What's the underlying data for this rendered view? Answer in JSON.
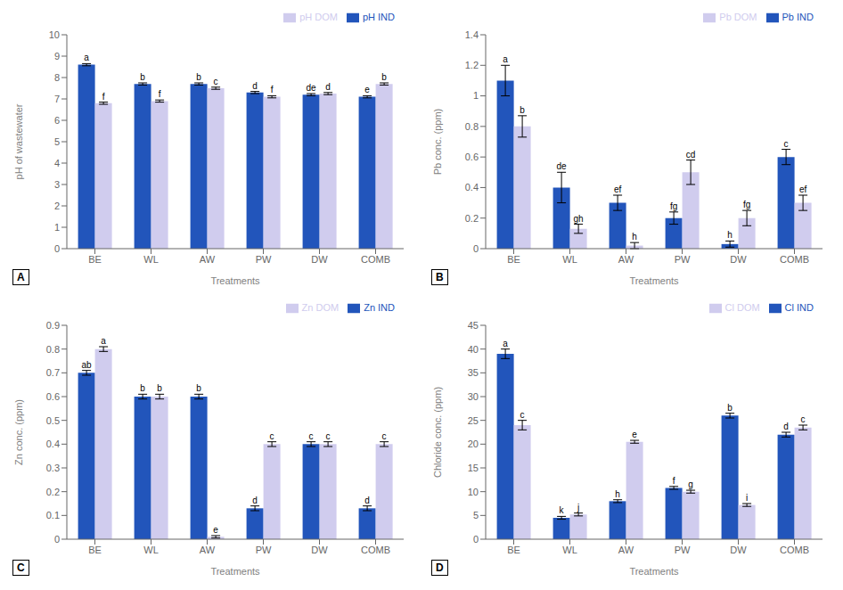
{
  "chart_data": [
    {
      "type": "bar",
      "title": "A",
      "categories": [
        "BE",
        "WL",
        "AW",
        "PW",
        "DW",
        "COMB"
      ],
      "series": [
        {
          "name": "pH IND",
          "color": "#2255bb",
          "values": [
            8.6,
            7.7,
            7.7,
            7.3,
            7.2,
            7.1
          ],
          "errors": [
            0.05,
            0.05,
            0.05,
            0.05,
            0.05,
            0.05
          ],
          "annotations": [
            "a",
            "b",
            "b",
            "d",
            "de",
            "e"
          ]
        },
        {
          "name": "pH DOM",
          "color": "#d0ccee",
          "values": [
            6.8,
            6.9,
            7.5,
            7.1,
            7.25,
            7.7
          ],
          "errors": [
            0.05,
            0.05,
            0.05,
            0.05,
            0.05,
            0.05
          ],
          "annotations": [
            "f",
            "f",
            "c",
            "f",
            "d",
            "b"
          ]
        }
      ],
      "xlabel": "Treatments",
      "ylabel": "pH of wastewater",
      "ylim": [
        0,
        10
      ],
      "yticks": [
        0,
        1,
        2,
        3,
        4,
        5,
        6,
        7,
        8,
        9,
        10
      ],
      "legend": "upper right",
      "grid": false
    },
    {
      "type": "bar",
      "title": "B",
      "categories": [
        "BE",
        "WL",
        "AW",
        "PW",
        "DW",
        "COMB"
      ],
      "series": [
        {
          "name": "Pb IND",
          "color": "#2255bb",
          "values": [
            1.1,
            0.4,
            0.3,
            0.2,
            0.03,
            0.6
          ],
          "errors": [
            0.1,
            0.1,
            0.05,
            0.04,
            0.02,
            0.05
          ],
          "annotations": [
            "a",
            "de",
            "ef",
            "fg",
            "h",
            "c"
          ]
        },
        {
          "name": "Pb DOM",
          "color": "#d0ccee",
          "values": [
            0.8,
            0.13,
            0.02,
            0.5,
            0.2,
            0.3
          ],
          "errors": [
            0.07,
            0.03,
            0.02,
            0.08,
            0.05,
            0.05
          ],
          "annotations": [
            "b",
            "gh",
            "h",
            "cd",
            "fg",
            "ef"
          ]
        }
      ],
      "xlabel": "Treatments",
      "ylabel": "Pb conc. (ppm)",
      "ylim": [
        0,
        1.4
      ],
      "yticks": [
        0,
        0.2,
        0.4,
        0.6,
        0.8,
        1,
        1.2,
        1.4
      ],
      "legend": "upper right",
      "grid": false
    },
    {
      "type": "bar",
      "title": "C",
      "categories": [
        "BE",
        "WL",
        "AW",
        "PW",
        "DW",
        "COMB"
      ],
      "series": [
        {
          "name": "Zn IND",
          "color": "#2255bb",
          "values": [
            0.7,
            0.6,
            0.6,
            0.13,
            0.4,
            0.13
          ],
          "errors": [
            0.01,
            0.01,
            0.01,
            0.01,
            0.01,
            0.01
          ],
          "annotations": [
            "ab",
            "b",
            "b",
            "d",
            "c",
            "d"
          ]
        },
        {
          "name": "Zn DOM",
          "color": "#d0ccee",
          "values": [
            0.8,
            0.6,
            0.01,
            0.4,
            0.4,
            0.4
          ],
          "errors": [
            0.01,
            0.01,
            0.005,
            0.01,
            0.01,
            0.01
          ],
          "annotations": [
            "a",
            "b",
            "e",
            "c",
            "c",
            "c"
          ]
        }
      ],
      "xlabel": "Treatments",
      "ylabel": "Zn conc. (ppm)",
      "ylim": [
        0,
        0.9
      ],
      "yticks": [
        0,
        0.1,
        0.2,
        0.3,
        0.4,
        0.5,
        0.6,
        0.7,
        0.8,
        0.9
      ],
      "legend": "upper right",
      "grid": false
    },
    {
      "type": "bar",
      "title": "D",
      "categories": [
        "BE",
        "WL",
        "AW",
        "PW",
        "DW",
        "COMB"
      ],
      "series": [
        {
          "name": "Cl IND",
          "color": "#2255bb",
          "values": [
            39.0,
            4.5,
            8.0,
            10.8,
            26.0,
            22.0
          ],
          "errors": [
            1.0,
            0.3,
            0.3,
            0.3,
            0.5,
            0.5
          ],
          "annotations": [
            "a",
            "k",
            "h",
            "f",
            "b",
            "d"
          ]
        },
        {
          "name": "Cl DOM",
          "color": "#d0ccee",
          "values": [
            24.0,
            5.2,
            20.5,
            10.0,
            7.2,
            23.5
          ],
          "errors": [
            1.0,
            0.3,
            0.3,
            0.3,
            0.3,
            0.5
          ],
          "annotations": [
            "c",
            "j",
            "e",
            "g",
            "i",
            "c"
          ]
        }
      ],
      "xlabel": "Treatments",
      "ylabel": "Chloride conc. (ppm)",
      "ylim": [
        0,
        45
      ],
      "yticks": [
        0,
        5,
        10,
        15,
        20,
        25,
        30,
        35,
        40,
        45
      ],
      "legend": "upper right",
      "grid": false
    }
  ]
}
